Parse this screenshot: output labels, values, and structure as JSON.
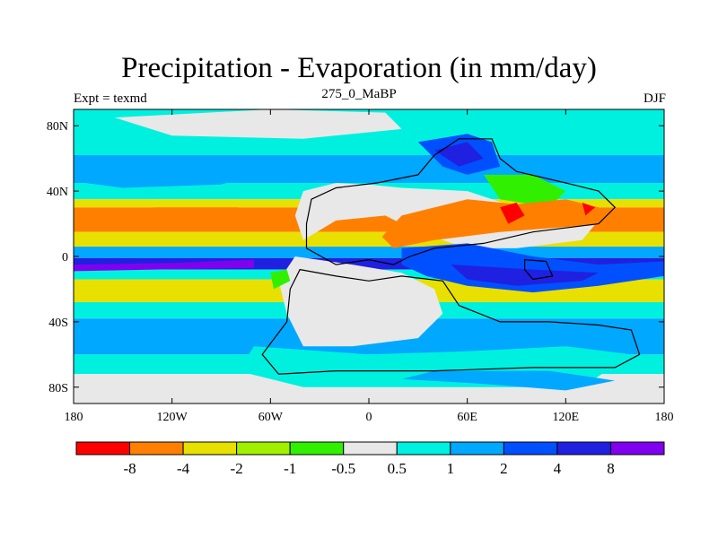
{
  "title": "Precipitation - Evaporation (in mm/day)",
  "subtitle": "275_0_MaBP",
  "left_label": "Expt = texmd",
  "right_label": "DJF",
  "chart_data": {
    "type": "heatmap",
    "title": "Precipitation - Evaporation (in mm/day)",
    "subtitle": "275_0_MaBP",
    "xlim": [
      -180,
      180
    ],
    "ylim": [
      -90,
      90
    ],
    "x_ticks": [
      {
        "value": -180,
        "label": "180"
      },
      {
        "value": -120,
        "label": "120W"
      },
      {
        "value": -60,
        "label": "60W"
      },
      {
        "value": 0,
        "label": "0"
      },
      {
        "value": 60,
        "label": "60E"
      },
      {
        "value": 120,
        "label": "120E"
      },
      {
        "value": 180,
        "label": "180"
      }
    ],
    "y_ticks": [
      {
        "value": 80,
        "label": "80N"
      },
      {
        "value": 40,
        "label": "40N"
      },
      {
        "value": 0,
        "label": "0"
      },
      {
        "value": -40,
        "label": "40S"
      },
      {
        "value": -80,
        "label": "80S"
      }
    ],
    "colorbar": {
      "colors": [
        "#ff0000",
        "#ff8000",
        "#e8e000",
        "#a0f000",
        "#30f000",
        "#e8e8e8",
        "#00f0e0",
        "#00a8ff",
        "#0050ff",
        "#2020e0",
        "#8000f0"
      ],
      "labels": [
        "-8",
        "-4",
        "-2",
        "-1",
        "-0.5",
        "0.5",
        "1",
        "2",
        "4",
        "8"
      ]
    },
    "zonal_bands": [
      {
        "lat_max": 90,
        "lat_min": 62,
        "color": "#00f0e0"
      },
      {
        "lat_max": 62,
        "lat_min": 45,
        "color": "#00a8ff"
      },
      {
        "lat_max": 45,
        "lat_min": 35,
        "color": "#00f0e0"
      },
      {
        "lat_max": 35,
        "lat_min": 30,
        "color": "#e8e000"
      },
      {
        "lat_max": 30,
        "lat_min": 15,
        "color": "#ff8000"
      },
      {
        "lat_max": 15,
        "lat_min": 6,
        "color": "#e8e000"
      },
      {
        "lat_max": 6,
        "lat_min": -1,
        "color": "#00a8ff"
      },
      {
        "lat_max": -1,
        "lat_min": -8,
        "color": "#2020e0"
      },
      {
        "lat_max": -8,
        "lat_min": -14,
        "color": "#00f0e0"
      },
      {
        "lat_max": -14,
        "lat_min": -28,
        "color": "#e8e000"
      },
      {
        "lat_max": -28,
        "lat_min": -38,
        "color": "#00f0e0"
      },
      {
        "lat_max": -38,
        "lat_min": -60,
        "color": "#00a8ff"
      },
      {
        "lat_max": -60,
        "lat_min": -72,
        "color": "#00f0e0"
      },
      {
        "lat_max": -72,
        "lat_min": -90,
        "color": "#e8e8e8"
      }
    ],
    "regions": [
      {
        "name": "arctic-dry",
        "color": "#e8e8e8",
        "points": [
          [
            -155,
            85
          ],
          [
            -60,
            90
          ],
          [
            10,
            88
          ],
          [
            20,
            78
          ],
          [
            -40,
            72
          ],
          [
            -120,
            74
          ]
        ]
      },
      {
        "name": "north-pacific-band",
        "color": "#00a8ff",
        "points": [
          [
            -180,
            52
          ],
          [
            -120,
            56
          ],
          [
            -70,
            50
          ],
          [
            -90,
            44
          ],
          [
            -150,
            42
          ],
          [
            -180,
            46
          ]
        ]
      },
      {
        "name": "pacific-orange-core",
        "color": "#ff8000",
        "points": [
          [
            -180,
            26
          ],
          [
            -130,
            30
          ],
          [
            -80,
            30
          ],
          [
            -60,
            22
          ],
          [
            -110,
            18
          ],
          [
            -160,
            18
          ]
        ]
      },
      {
        "name": "equatorial-purple",
        "color": "#8000f0",
        "points": [
          [
            -180,
            -5
          ],
          [
            -120,
            -4
          ],
          [
            -70,
            -2
          ],
          [
            -70,
            -7
          ],
          [
            -130,
            -8
          ],
          [
            -180,
            -9
          ]
        ]
      },
      {
        "name": "laurasia-dry",
        "color": "#e8e8e8",
        "points": [
          [
            -40,
            40
          ],
          [
            -20,
            45
          ],
          [
            0,
            44
          ],
          [
            20,
            42
          ],
          [
            60,
            40
          ],
          [
            90,
            30
          ],
          [
            120,
            28
          ],
          [
            140,
            22
          ],
          [
            130,
            10
          ],
          [
            90,
            5
          ],
          [
            60,
            5
          ],
          [
            30,
            15
          ],
          [
            10,
            25
          ],
          [
            -20,
            22
          ],
          [
            -40,
            10
          ],
          [
            -45,
            25
          ]
        ]
      },
      {
        "name": "siberia-wet",
        "color": "#0050ff",
        "points": [
          [
            30,
            70
          ],
          [
            60,
            75
          ],
          [
            75,
            70
          ],
          [
            80,
            55
          ],
          [
            60,
            50
          ],
          [
            45,
            55
          ]
        ]
      },
      {
        "name": "siberia-core",
        "color": "#2020e0",
        "points": [
          [
            40,
            65
          ],
          [
            60,
            70
          ],
          [
            70,
            60
          ],
          [
            55,
            55
          ]
        ]
      },
      {
        "name": "east-asia-green",
        "color": "#30f000",
        "points": [
          [
            70,
            50
          ],
          [
            100,
            50
          ],
          [
            120,
            40
          ],
          [
            110,
            30
          ],
          [
            80,
            35
          ]
        ]
      },
      {
        "name": "tethys-orange",
        "color": "#ff8000",
        "points": [
          [
            20,
            25
          ],
          [
            60,
            35
          ],
          [
            90,
            32
          ],
          [
            120,
            35
          ],
          [
            140,
            30
          ],
          [
            150,
            20
          ],
          [
            120,
            18
          ],
          [
            80,
            15
          ],
          [
            40,
            10
          ],
          [
            15,
            5
          ],
          [
            8,
            12
          ]
        ]
      },
      {
        "name": "tethys-red-1",
        "color": "#ff0000",
        "points": [
          [
            80,
            30
          ],
          [
            90,
            33
          ],
          [
            95,
            25
          ],
          [
            85,
            20
          ]
        ]
      },
      {
        "name": "tethys-red-2",
        "color": "#ff0000",
        "points": [
          [
            130,
            33
          ],
          [
            138,
            30
          ],
          [
            132,
            25
          ]
        ]
      },
      {
        "name": "gondwana-dry",
        "color": "#e8e8e8",
        "points": [
          [
            -45,
            0
          ],
          [
            -10,
            -5
          ],
          [
            20,
            -10
          ],
          [
            40,
            -20
          ],
          [
            45,
            -35
          ],
          [
            30,
            -50
          ],
          [
            -10,
            -55
          ],
          [
            -40,
            -55
          ],
          [
            -50,
            -35
          ],
          [
            -55,
            -15
          ]
        ]
      },
      {
        "name": "tethys-blue",
        "color": "#0050ff",
        "points": [
          [
            20,
            5
          ],
          [
            60,
            8
          ],
          [
            100,
            0
          ],
          [
            140,
            -5
          ],
          [
            180,
            -3
          ],
          [
            180,
            -12
          ],
          [
            140,
            -18
          ],
          [
            100,
            -22
          ],
          [
            60,
            -18
          ],
          [
            35,
            -12
          ],
          [
            20,
            -5
          ]
        ]
      },
      {
        "name": "tethys-deep",
        "color": "#2020e0",
        "points": [
          [
            50,
            -5
          ],
          [
            100,
            -8
          ],
          [
            140,
            -10
          ],
          [
            130,
            -15
          ],
          [
            90,
            -18
          ],
          [
            60,
            -14
          ]
        ]
      },
      {
        "name": "antarctic-coast-cyan",
        "color": "#00f0e0",
        "points": [
          [
            -70,
            -55
          ],
          [
            0,
            -60
          ],
          [
            60,
            -58
          ],
          [
            120,
            -55
          ],
          [
            160,
            -60
          ],
          [
            130,
            -80
          ],
          [
            -40,
            -80
          ],
          [
            -80,
            -70
          ]
        ]
      },
      {
        "name": "gondwana-green-edge",
        "color": "#30f000",
        "points": [
          [
            -60,
            -10
          ],
          [
            -50,
            -8
          ],
          [
            -48,
            -15
          ],
          [
            -58,
            -20
          ]
        ]
      },
      {
        "name": "south-polar-blue",
        "color": "#00a8ff",
        "points": [
          [
            20,
            -75
          ],
          [
            70,
            -78
          ],
          [
            120,
            -82
          ],
          [
            150,
            -76
          ],
          [
            110,
            -70
          ],
          [
            40,
            -70
          ]
        ]
      }
    ],
    "coastlines": [
      {
        "name": "north-landmass",
        "points": [
          [
            -38,
            20
          ],
          [
            -35,
            35
          ],
          [
            -20,
            42
          ],
          [
            5,
            45
          ],
          [
            30,
            50
          ],
          [
            40,
            62
          ],
          [
            55,
            72
          ],
          [
            75,
            72
          ],
          [
            80,
            60
          ],
          [
            90,
            52
          ],
          [
            120,
            45
          ],
          [
            140,
            40
          ],
          [
            150,
            30
          ],
          [
            140,
            20
          ],
          [
            100,
            15
          ],
          [
            70,
            8
          ],
          [
            40,
            5
          ],
          [
            25,
            0
          ],
          [
            15,
            -5
          ],
          [
            0,
            -2
          ],
          [
            -20,
            -5
          ],
          [
            -38,
            5
          ]
        ]
      },
      {
        "name": "south-landmass",
        "points": [
          [
            -42,
            -8
          ],
          [
            -20,
            -12
          ],
          [
            0,
            -15
          ],
          [
            20,
            -12
          ],
          [
            45,
            -15
          ],
          [
            55,
            -30
          ],
          [
            80,
            -40
          ],
          [
            110,
            -40
          ],
          [
            140,
            -42
          ],
          [
            160,
            -45
          ],
          [
            165,
            -60
          ],
          [
            150,
            -68
          ],
          [
            100,
            -68
          ],
          [
            40,
            -70
          ],
          [
            -20,
            -70
          ],
          [
            -55,
            -72
          ],
          [
            -65,
            -60
          ],
          [
            -50,
            -40
          ],
          [
            -48,
            -20
          ]
        ]
      },
      {
        "name": "island-chain",
        "points": [
          [
            95,
            -2
          ],
          [
            108,
            -3
          ],
          [
            112,
            -12
          ],
          [
            100,
            -14
          ],
          [
            95,
            -8
          ]
        ]
      }
    ]
  }
}
